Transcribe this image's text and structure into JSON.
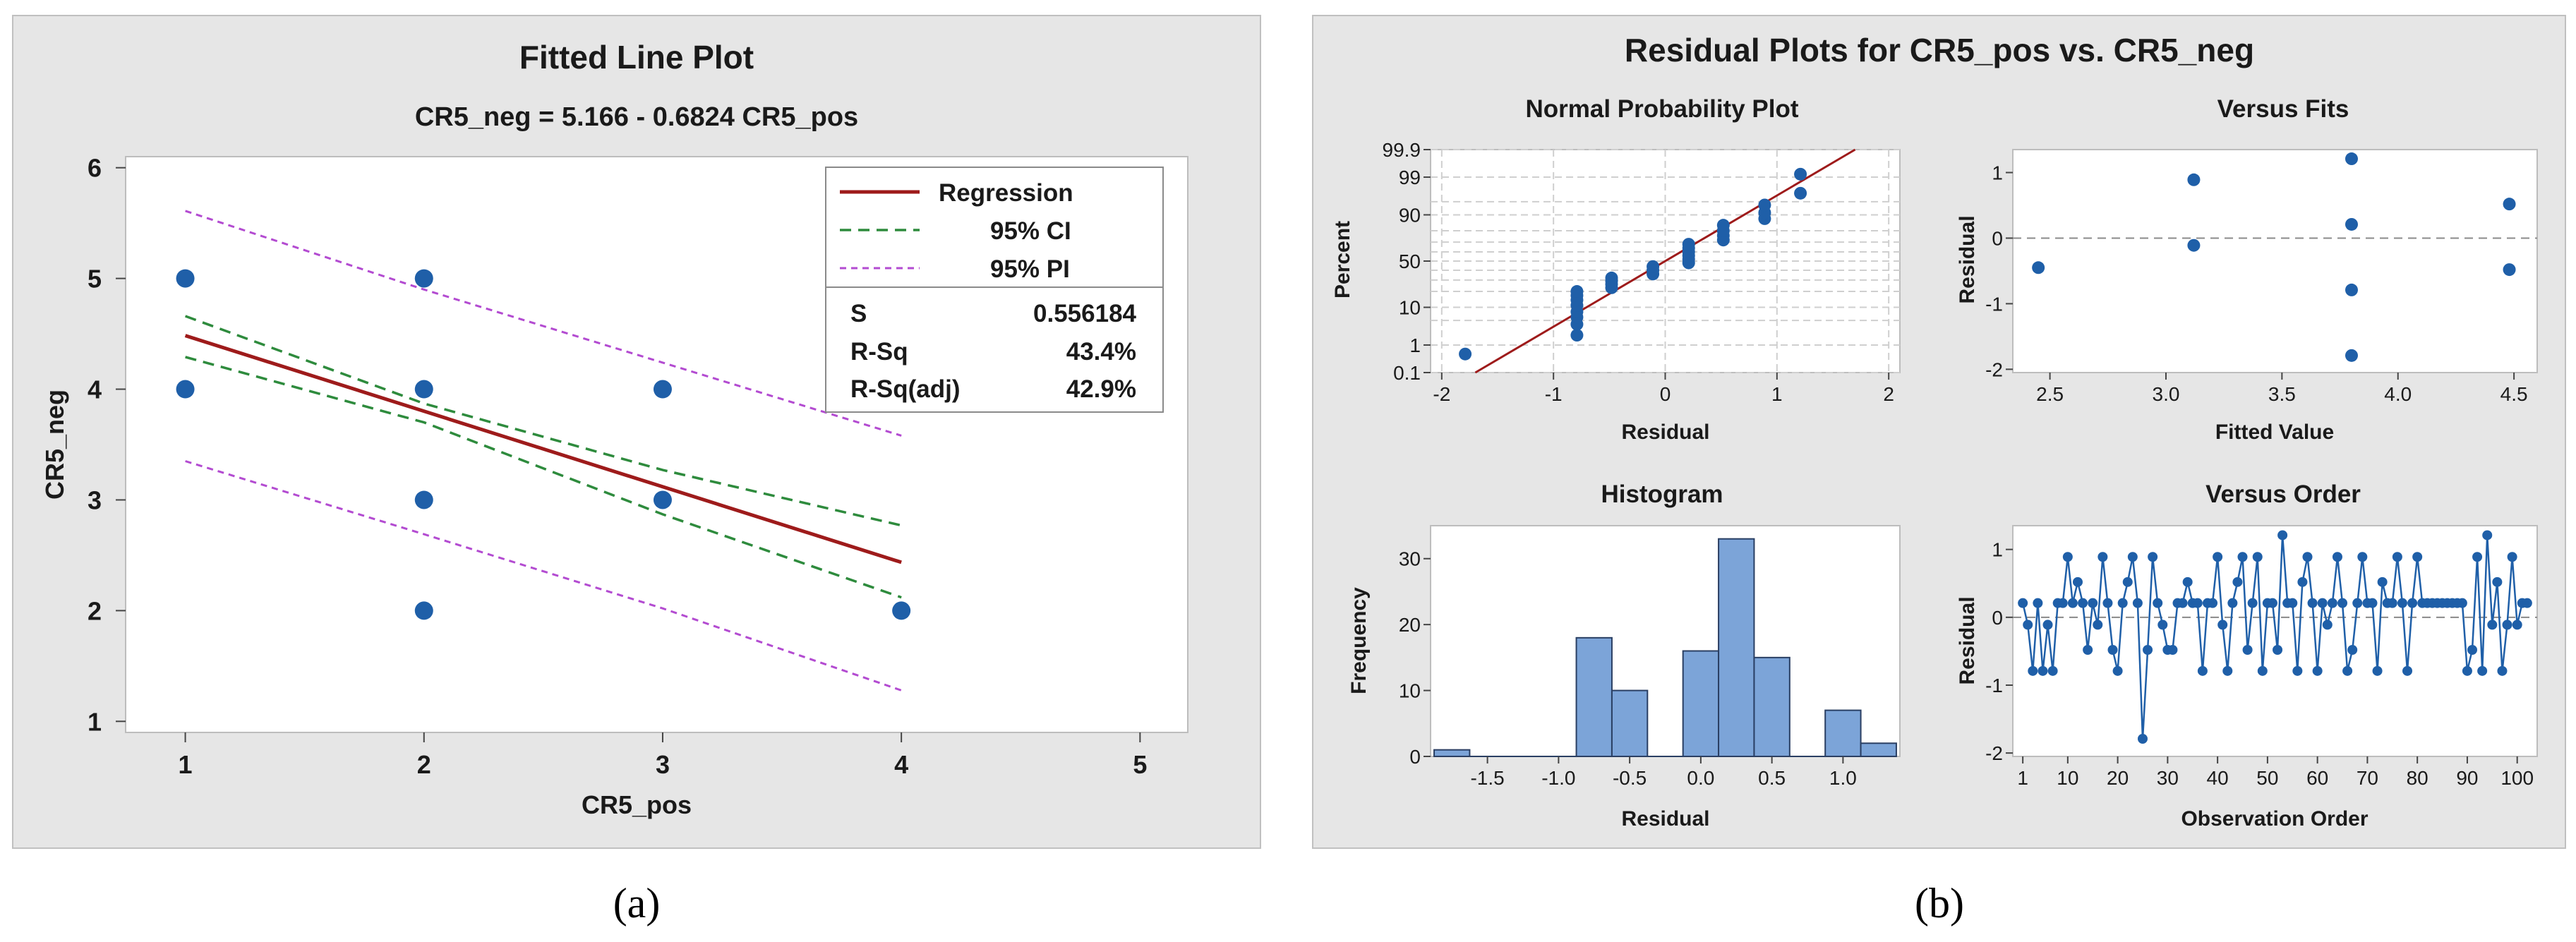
{
  "fig_a": {
    "title": "Fitted Line Plot",
    "subtitle": "CR5_neg = 5.166 - 0.6824 CR5_pos",
    "caption": "(a)",
    "chart_data": {
      "type": "scatter",
      "xlabel": "CR5_pos",
      "ylabel": "CR5_neg",
      "xlim": [
        0.75,
        5.2
      ],
      "ylim": [
        0.9,
        6.1
      ],
      "xticks": [
        1,
        2,
        3,
        4,
        5
      ],
      "yticks": [
        1,
        2,
        3,
        4,
        5,
        6
      ],
      "points": [
        [
          1,
          5
        ],
        [
          1,
          4
        ],
        [
          2,
          5
        ],
        [
          2,
          4
        ],
        [
          2,
          3
        ],
        [
          2,
          2
        ],
        [
          3,
          4
        ],
        [
          3,
          3
        ],
        [
          4,
          2
        ]
      ],
      "regression": {
        "intercept": 5.166,
        "slope": -0.6824,
        "x": [
          1,
          4
        ]
      },
      "ci": {
        "upper": [
          [
            1,
            4.66
          ],
          [
            2,
            3.87
          ],
          [
            3,
            3.27
          ],
          [
            4,
            2.77
          ]
        ],
        "lower": [
          [
            1,
            4.29
          ],
          [
            2,
            3.7
          ],
          [
            3,
            2.87
          ],
          [
            4,
            2.12
          ]
        ]
      },
      "pi": {
        "upper": [
          [
            1,
            5.61
          ],
          [
            2,
            4.9
          ],
          [
            3,
            4.24
          ],
          [
            4,
            3.58
          ]
        ],
        "lower": [
          [
            1,
            3.35
          ],
          [
            2,
            2.69
          ],
          [
            3,
            2.02
          ],
          [
            4,
            1.28
          ]
        ]
      },
      "colors": {
        "point": "#1f5fa8",
        "regression": "#9e1b1b",
        "ci": "#2e8b3d",
        "pi": "#b34bd1"
      }
    },
    "legend": {
      "regression": "Regression",
      "ci": "95% CI",
      "pi": "95% PI"
    },
    "stats": [
      {
        "label": "S",
        "value": "0.556184"
      },
      {
        "label": "R-Sq",
        "value": "43.4%"
      },
      {
        "label": "R-Sq(adj)",
        "value": "42.9%"
      }
    ]
  },
  "fig_b": {
    "title": "Residual Plots for CR5_pos vs. CR5_neg",
    "caption": "(b)",
    "npp": {
      "title": "Normal Probability Plot",
      "xlabel": "Residual",
      "ylabel": "Percent",
      "xticks": [
        "-2",
        "-1",
        "0",
        "1",
        "2"
      ],
      "yticks": [
        "0.1",
        "1",
        "10",
        "50",
        "90",
        "99",
        "99.9"
      ],
      "chart_data": {
        "type": "scatter",
        "xlim": [
          -2.1,
          2.1
        ],
        "zlim": [
          -3.09,
          3.09
        ],
        "ytick_percent": [
          0.1,
          1,
          10,
          50,
          90,
          99,
          99.9
        ],
        "points": [
          [
            -1.79,
            0.5
          ],
          [
            -0.79,
            2
          ],
          [
            -0.79,
            4
          ],
          [
            -0.79,
            6
          ],
          [
            -0.79,
            8
          ],
          [
            -0.79,
            11
          ],
          [
            -0.79,
            14
          ],
          [
            -0.79,
            17
          ],
          [
            -0.79,
            20
          ],
          [
            -0.48,
            23
          ],
          [
            -0.48,
            26
          ],
          [
            -0.48,
            29
          ],
          [
            -0.48,
            32
          ],
          [
            -0.11,
            36
          ],
          [
            -0.11,
            40
          ],
          [
            -0.11,
            44
          ],
          [
            0.21,
            48
          ],
          [
            0.21,
            52
          ],
          [
            0.21,
            56
          ],
          [
            0.21,
            60
          ],
          [
            0.21,
            64
          ],
          [
            0.21,
            68
          ],
          [
            0.52,
            72
          ],
          [
            0.52,
            76
          ],
          [
            0.52,
            80
          ],
          [
            0.52,
            84
          ],
          [
            0.89,
            88
          ],
          [
            0.89,
            91
          ],
          [
            0.89,
            94
          ],
          [
            1.21,
            97
          ],
          [
            1.21,
            99.2
          ]
        ],
        "fit_line": {
          "mean": 0,
          "sd": 0.55
        },
        "color": "#1f5fa8",
        "line_color": "#9e1b1b"
      }
    },
    "fits": {
      "title": "Versus Fits",
      "xlabel": "Fitted Value",
      "ylabel": "Residual",
      "xticks": [
        "2.5",
        "3.0",
        "3.5",
        "4.0",
        "4.5"
      ],
      "yticks": [
        "1",
        "0",
        "-1",
        "-2"
      ],
      "chart_data": {
        "type": "scatter",
        "xlim": [
          2.34,
          4.6
        ],
        "ylim": [
          -2.05,
          1.35
        ],
        "xtick_values": [
          2.5,
          3.0,
          3.5,
          4.0,
          4.5
        ],
        "ytick_values": [
          1,
          0,
          -1,
          -2
        ],
        "points": [
          [
            2.45,
            -0.45
          ],
          [
            3.12,
            0.89
          ],
          [
            3.12,
            -0.11
          ],
          [
            3.8,
            1.21
          ],
          [
            3.8,
            0.21
          ],
          [
            3.8,
            -0.79
          ],
          [
            3.8,
            -1.79
          ],
          [
            4.48,
            0.52
          ],
          [
            4.48,
            -0.48
          ]
        ],
        "color": "#1f5fa8"
      }
    },
    "hist": {
      "title": "Histogram",
      "xlabel": "Residual",
      "ylabel": "Frequency",
      "xticks": [
        "-1.5",
        "-1.0",
        "-0.5",
        "0.0",
        "0.5",
        "1.0"
      ],
      "yticks": [
        "0",
        "10",
        "20",
        "30"
      ],
      "chart_data": {
        "type": "bar",
        "xlim": [
          -1.9,
          1.4
        ],
        "ylim": [
          0,
          35
        ],
        "xtick_values": [
          -1.5,
          -1.0,
          -0.5,
          0.0,
          0.5,
          1.0
        ],
        "ytick_values": [
          0,
          10,
          20,
          30
        ],
        "bin_width": 0.25,
        "bins": [
          {
            "start": -1.875,
            "count": 1
          },
          {
            "start": -1.625,
            "count": 0
          },
          {
            "start": -1.375,
            "count": 0
          },
          {
            "start": -1.125,
            "count": 0
          },
          {
            "start": -0.875,
            "count": 18
          },
          {
            "start": -0.625,
            "count": 10
          },
          {
            "start": -0.375,
            "count": 0
          },
          {
            "start": -0.125,
            "count": 16
          },
          {
            "start": 0.125,
            "count": 33
          },
          {
            "start": 0.375,
            "count": 15
          },
          {
            "start": 0.625,
            "count": 0
          },
          {
            "start": 0.875,
            "count": 7
          },
          {
            "start": 1.125,
            "count": 2
          }
        ],
        "fill": "#7ca4d8",
        "stroke": "#2a3f63"
      }
    },
    "order": {
      "title": "Versus Order",
      "xlabel": "Observation Order",
      "ylabel": "Residual",
      "xticks": [
        "1",
        "10",
        "20",
        "30",
        "40",
        "50",
        "60",
        "70",
        "80",
        "90",
        "100"
      ],
      "yticks": [
        "1",
        "0",
        "-1",
        "-2"
      ],
      "chart_data": {
        "type": "line",
        "xlim": [
          -1,
          104
        ],
        "ylim": [
          -2.05,
          1.35
        ],
        "xtick_values": [
          1,
          10,
          20,
          30,
          40,
          50,
          60,
          70,
          80,
          90,
          100
        ],
        "ytick_values": [
          1,
          0,
          -1,
          -2
        ],
        "residuals": [
          0.21,
          -0.11,
          -0.79,
          0.21,
          -0.79,
          -0.11,
          -0.79,
          0.21,
          0.21,
          0.89,
          0.21,
          0.52,
          0.21,
          -0.48,
          0.21,
          -0.11,
          0.89,
          0.21,
          -0.48,
          -0.79,
          0.21,
          0.52,
          0.89,
          0.21,
          -1.79,
          -0.48,
          0.89,
          0.21,
          -0.11,
          -0.48,
          -0.48,
          0.21,
          0.21,
          0.52,
          0.21,
          0.21,
          -0.79,
          0.21,
          0.21,
          0.89,
          -0.11,
          -0.79,
          0.21,
          0.52,
          0.89,
          -0.48,
          0.21,
          0.89,
          -0.79,
          0.21,
          0.21,
          -0.48,
          1.21,
          0.21,
          0.21,
          -0.79,
          0.52,
          0.89,
          0.21,
          -0.79,
          0.21,
          -0.11,
          0.21,
          0.89,
          0.21,
          -0.79,
          -0.48,
          0.21,
          0.89,
          0.21,
          0.21,
          -0.79,
          0.52,
          0.21,
          0.21,
          0.89,
          0.21,
          -0.79,
          0.21,
          0.89,
          0.21,
          0.21,
          0.21,
          0.21,
          0.21,
          0.21,
          0.21,
          0.21,
          0.21,
          -0.79,
          -0.48,
          0.89,
          -0.79,
          1.21,
          -0.11,
          0.52,
          -0.79,
          -0.11,
          0.89,
          -0.11,
          0.21,
          0.21
        ],
        "color": "#1f5fa8"
      }
    }
  }
}
